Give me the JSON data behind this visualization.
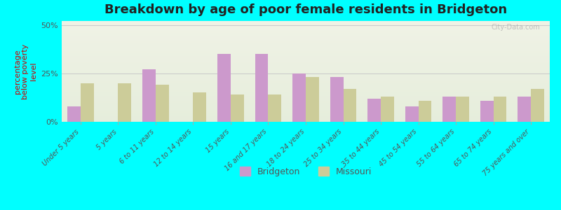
{
  "title": "Breakdown by age of poor female residents in Bridgeton",
  "ylabel": "percentage\nbelow poverty\nlevel",
  "categories": [
    "Under 5 years",
    "5 years",
    "6 to 11 years",
    "12 to 14 years",
    "15 years",
    "16 and 17 years",
    "18 to 24 years",
    "25 to 34 years",
    "35 to 44 years",
    "45 to 54 years",
    "55 to 64 years",
    "65 to 74 years",
    "75 years and over"
  ],
  "bridgeton": [
    8,
    0,
    27,
    0,
    35,
    35,
    25,
    23,
    12,
    8,
    13,
    11,
    13
  ],
  "missouri": [
    20,
    20,
    19,
    15,
    14,
    14,
    23,
    17,
    13,
    11,
    13,
    13,
    17
  ],
  "bridgeton_color": "#cc99cc",
  "missouri_color": "#cccc99",
  "background_color": "#00ffff",
  "plot_bg_top": "#f0f0e8",
  "plot_bg_bottom": "#e8f0e8",
  "yticks": [
    0,
    25,
    50
  ],
  "ylim": [
    0,
    52
  ],
  "bar_width": 0.35,
  "title_fontsize": 13,
  "axis_label_fontsize": 8,
  "tick_fontsize": 7,
  "legend_fontsize": 9,
  "watermark": "City-Data.com"
}
